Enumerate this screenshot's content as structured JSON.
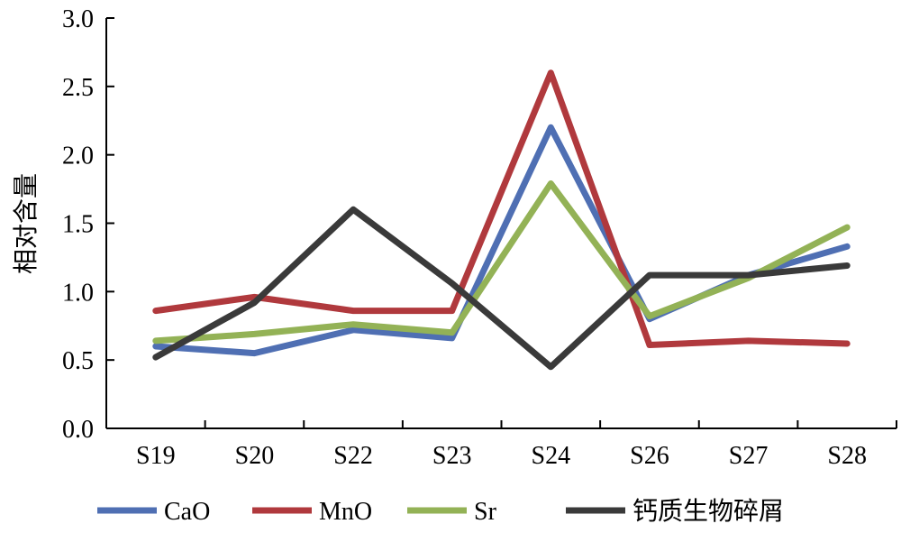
{
  "chart_data": {
    "type": "line",
    "title": "",
    "xlabel": "",
    "ylabel": "相对含量",
    "categories": [
      "S19",
      "S20",
      "S22",
      "S23",
      "S24",
      "S26",
      "S27",
      "S28"
    ],
    "ylim": [
      0,
      3.0
    ],
    "yticks": [
      "0.0",
      "0.5",
      "1.0",
      "1.5",
      "2.0",
      "2.5",
      "3.0"
    ],
    "grid": false,
    "legend_position": "bottom",
    "series": [
      {
        "name": "CaO",
        "color": "#4f6fb3",
        "values": [
          0.6,
          0.55,
          0.72,
          0.66,
          2.2,
          0.8,
          1.12,
          1.33
        ]
      },
      {
        "name": "MnO",
        "color": "#b0393d",
        "values": [
          0.86,
          0.96,
          0.86,
          0.86,
          2.6,
          0.61,
          0.64,
          0.62
        ]
      },
      {
        "name": "Sr",
        "color": "#93b256",
        "values": [
          0.64,
          0.69,
          0.76,
          0.7,
          1.79,
          0.82,
          1.1,
          1.47
        ]
      },
      {
        "name": "钙质生物碎屑",
        "color": "#3a3a3a",
        "values": [
          0.52,
          0.92,
          1.6,
          1.06,
          0.45,
          1.12,
          1.12,
          1.19
        ]
      }
    ]
  }
}
